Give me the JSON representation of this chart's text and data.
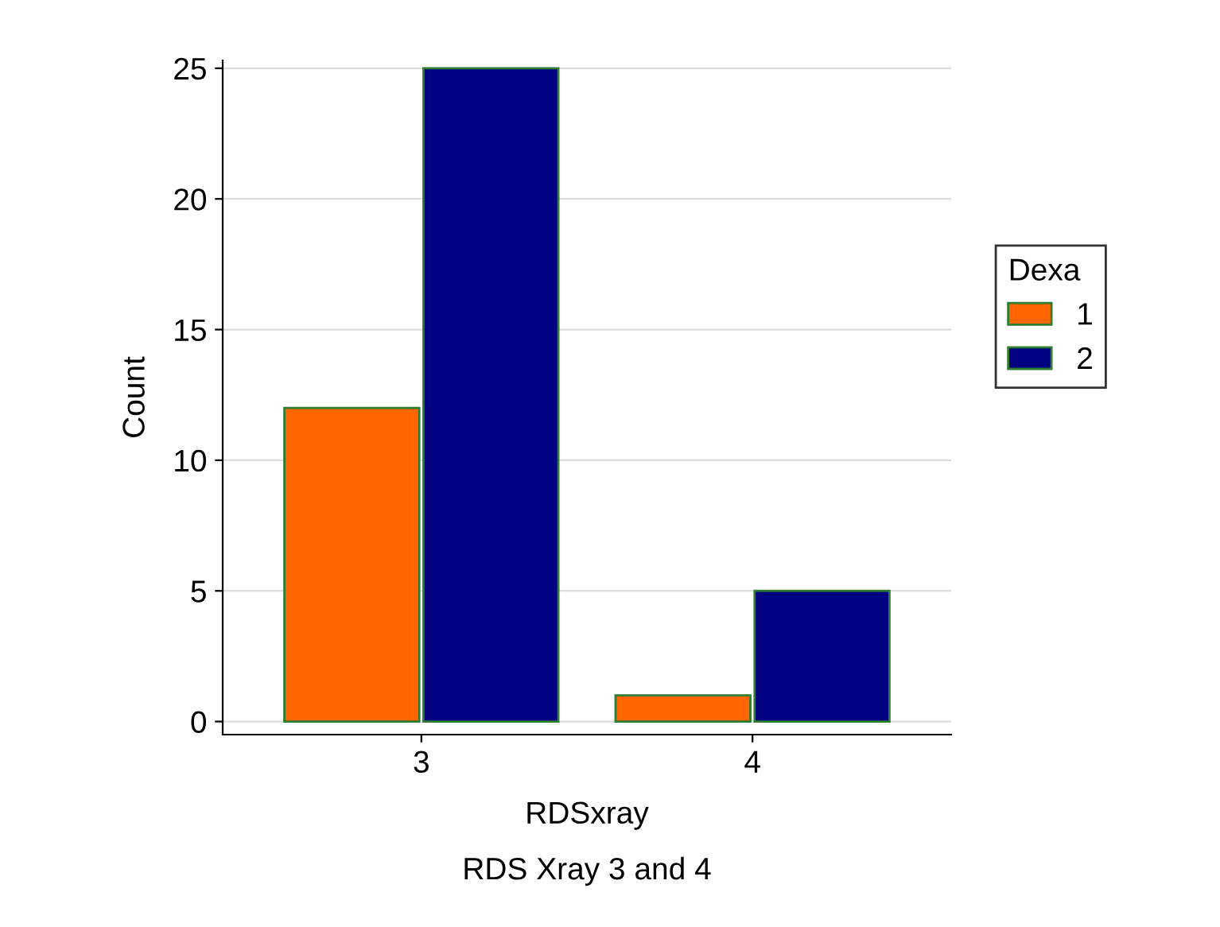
{
  "chart_data": {
    "type": "bar",
    "categories": [
      "3",
      "4"
    ],
    "series": [
      {
        "name": "1",
        "color": "#ff6600",
        "values": [
          12,
          1
        ]
      },
      {
        "name": "2",
        "color": "#000080",
        "values": [
          25,
          5
        ]
      }
    ],
    "xlabel": "RDSxray",
    "ylabel": "Count",
    "legend_title": "Dexa",
    "legend": "right",
    "annotations": [
      "RDS Xray 3 and 4"
    ],
    "ylim": [
      -0.5,
      25.3
    ],
    "yticks": [
      0,
      5,
      10,
      15,
      20,
      25
    ],
    "grid": "y"
  }
}
